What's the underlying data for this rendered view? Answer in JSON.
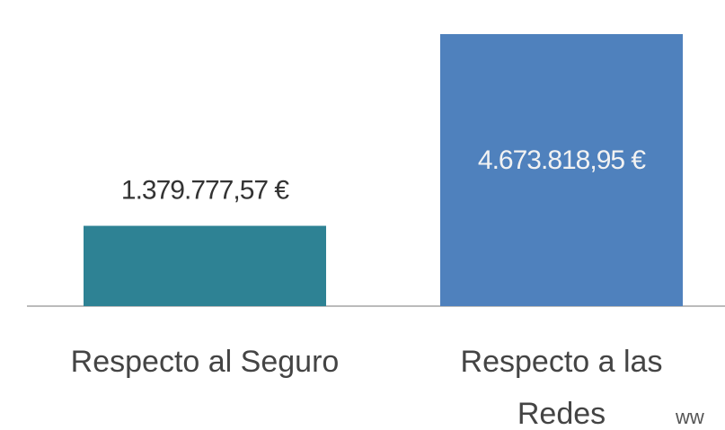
{
  "chart_data": {
    "type": "bar",
    "categories": [
      "Respecto al Seguro",
      "Respecto a las Redes"
    ],
    "series": [
      {
        "values": [
          1379777.57,
          4673818.95
        ],
        "value_labels": [
          "1.379.777,57 €",
          "4.673.818,95 €"
        ],
        "colors": [
          "#2e8294",
          "#4f81bd"
        ]
      }
    ],
    "annotation": "ww"
  }
}
